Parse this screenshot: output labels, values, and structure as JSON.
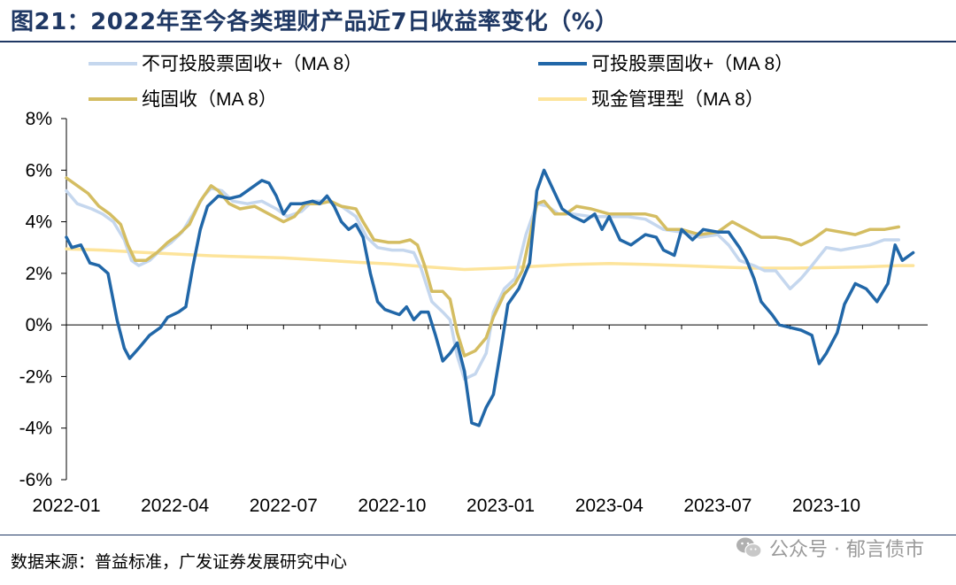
{
  "figure": {
    "title": "图21：2022年至今各类理财产品近7日收益率变化（%）",
    "source": "数据来源：普益标准，广发证券发展研究中心",
    "watermark": "公众号 · 郁言债市"
  },
  "chart_data": {
    "type": "line",
    "title": "",
    "xlabel": "",
    "ylabel": "",
    "ylim": [
      -6,
      8
    ],
    "yticks": [
      -6,
      -4,
      -2,
      0,
      2,
      4,
      6,
      8
    ],
    "ytick_labels": [
      "-6%",
      "-4%",
      "-2%",
      "0%",
      "2%",
      "4%",
      "6%",
      "8%"
    ],
    "xlim": [
      0,
      23.8
    ],
    "xticks": [
      0,
      3,
      6,
      9,
      12,
      15,
      18,
      21
    ],
    "xtick_labels": [
      "2022-01",
      "2022-04",
      "2022-07",
      "2022-10",
      "2023-01",
      "2023-04",
      "2023-07",
      "2023-10"
    ],
    "x_unit": "months since 2022-01",
    "grid": false,
    "legend_position": "top",
    "series": [
      {
        "name": "不可投股票固收+（MA 8）",
        "color": "#c5d7ee",
        "points": [
          [
            0,
            5.2
          ],
          [
            0.3,
            4.7
          ],
          [
            0.7,
            4.5
          ],
          [
            1.0,
            4.3
          ],
          [
            1.3,
            4.0
          ],
          [
            1.6,
            3.3
          ],
          [
            1.8,
            2.5
          ],
          [
            2.0,
            2.3
          ],
          [
            2.3,
            2.5
          ],
          [
            2.6,
            2.9
          ],
          [
            2.9,
            3.2
          ],
          [
            3.2,
            3.6
          ],
          [
            3.5,
            4.3
          ],
          [
            3.8,
            5.0
          ],
          [
            4.0,
            5.3
          ],
          [
            4.3,
            5.2
          ],
          [
            4.6,
            4.8
          ],
          [
            5.0,
            4.7
          ],
          [
            5.4,
            4.8
          ],
          [
            5.8,
            4.5
          ],
          [
            6.1,
            4.2
          ],
          [
            6.5,
            4.4
          ],
          [
            6.8,
            4.8
          ],
          [
            7.2,
            4.8
          ],
          [
            7.6,
            4.6
          ],
          [
            8.0,
            4.2
          ],
          [
            8.3,
            3.4
          ],
          [
            8.6,
            3.0
          ],
          [
            9.0,
            2.9
          ],
          [
            9.3,
            2.9
          ],
          [
            9.6,
            2.8
          ],
          [
            9.8,
            2.2
          ],
          [
            10.1,
            0.9
          ],
          [
            10.4,
            0.5
          ],
          [
            10.6,
            0.2
          ],
          [
            10.8,
            -1.2
          ],
          [
            11.0,
            -2.1
          ],
          [
            11.3,
            -1.9
          ],
          [
            11.6,
            -1.1
          ],
          [
            11.8,
            0.5
          ],
          [
            12.1,
            1.4
          ],
          [
            12.4,
            1.8
          ],
          [
            12.7,
            3.5
          ],
          [
            13.0,
            4.7
          ],
          [
            13.3,
            4.6
          ],
          [
            13.6,
            4.3
          ],
          [
            14.0,
            4.3
          ],
          [
            14.5,
            4.2
          ],
          [
            15.0,
            4.2
          ],
          [
            15.5,
            4.2
          ],
          [
            16.0,
            4.1
          ],
          [
            16.5,
            3.7
          ],
          [
            17.0,
            3.6
          ],
          [
            17.5,
            3.4
          ],
          [
            18.0,
            3.5
          ],
          [
            18.3,
            3.1
          ],
          [
            18.6,
            2.5
          ],
          [
            19.0,
            2.3
          ],
          [
            19.3,
            2.1
          ],
          [
            19.6,
            2.1
          ],
          [
            20.0,
            1.4
          ],
          [
            20.3,
            1.8
          ],
          [
            20.6,
            2.3
          ],
          [
            21.0,
            3.0
          ],
          [
            21.4,
            2.9
          ],
          [
            21.8,
            3.0
          ],
          [
            22.2,
            3.1
          ],
          [
            22.6,
            3.3
          ],
          [
            23.0,
            3.3
          ]
        ]
      },
      {
        "name": "可投股票固收+（MA 8）",
        "color": "#2167a8",
        "points": [
          [
            0,
            3.4
          ],
          [
            0.15,
            3.0
          ],
          [
            0.4,
            3.1
          ],
          [
            0.65,
            2.4
          ],
          [
            0.9,
            2.3
          ],
          [
            1.15,
            2.0
          ],
          [
            1.4,
            0.2
          ],
          [
            1.6,
            -0.9
          ],
          [
            1.75,
            -1.3
          ],
          [
            2.0,
            -0.9
          ],
          [
            2.3,
            -0.4
          ],
          [
            2.6,
            -0.1
          ],
          [
            2.8,
            0.3
          ],
          [
            3.1,
            0.5
          ],
          [
            3.3,
            0.7
          ],
          [
            3.5,
            2.3
          ],
          [
            3.7,
            3.7
          ],
          [
            3.9,
            4.6
          ],
          [
            4.2,
            5.0
          ],
          [
            4.5,
            4.9
          ],
          [
            4.8,
            5.0
          ],
          [
            5.1,
            5.3
          ],
          [
            5.4,
            5.6
          ],
          [
            5.6,
            5.5
          ],
          [
            5.8,
            5.0
          ],
          [
            6.0,
            4.3
          ],
          [
            6.2,
            4.7
          ],
          [
            6.5,
            4.7
          ],
          [
            6.8,
            4.8
          ],
          [
            7.0,
            4.7
          ],
          [
            7.2,
            5.0
          ],
          [
            7.4,
            4.6
          ],
          [
            7.6,
            4.0
          ],
          [
            7.8,
            3.7
          ],
          [
            8.0,
            3.9
          ],
          [
            8.2,
            3.4
          ],
          [
            8.4,
            2.0
          ],
          [
            8.6,
            0.9
          ],
          [
            8.8,
            0.6
          ],
          [
            9.0,
            0.5
          ],
          [
            9.2,
            0.4
          ],
          [
            9.4,
            0.7
          ],
          [
            9.6,
            0.2
          ],
          [
            9.8,
            0.5
          ],
          [
            10.0,
            0.5
          ],
          [
            10.2,
            -0.4
          ],
          [
            10.4,
            -1.4
          ],
          [
            10.6,
            -1.1
          ],
          [
            10.8,
            -0.7
          ],
          [
            11.0,
            -1.8
          ],
          [
            11.2,
            -3.8
          ],
          [
            11.4,
            -3.9
          ],
          [
            11.6,
            -3.2
          ],
          [
            11.8,
            -2.7
          ],
          [
            12.0,
            -1.0
          ],
          [
            12.2,
            0.8
          ],
          [
            12.5,
            1.4
          ],
          [
            12.8,
            2.4
          ],
          [
            13.0,
            5.2
          ],
          [
            13.2,
            6.0
          ],
          [
            13.5,
            5.1
          ],
          [
            13.7,
            4.5
          ],
          [
            14.0,
            4.2
          ],
          [
            14.3,
            4.0
          ],
          [
            14.6,
            4.3
          ],
          [
            14.8,
            3.7
          ],
          [
            15.0,
            4.2
          ],
          [
            15.3,
            3.3
          ],
          [
            15.6,
            3.1
          ],
          [
            15.8,
            3.3
          ],
          [
            16.0,
            3.5
          ],
          [
            16.3,
            3.4
          ],
          [
            16.5,
            2.9
          ],
          [
            16.8,
            2.7
          ],
          [
            17.0,
            3.7
          ],
          [
            17.3,
            3.3
          ],
          [
            17.6,
            3.7
          ],
          [
            18.0,
            3.6
          ],
          [
            18.3,
            3.6
          ],
          [
            18.6,
            3.0
          ],
          [
            18.8,
            2.5
          ],
          [
            19.0,
            1.8
          ],
          [
            19.2,
            0.9
          ],
          [
            19.5,
            0.4
          ],
          [
            19.7,
            0.0
          ],
          [
            20.0,
            -0.1
          ],
          [
            20.3,
            -0.2
          ],
          [
            20.6,
            -0.4
          ],
          [
            20.8,
            -1.5
          ],
          [
            21.0,
            -1.1
          ],
          [
            21.3,
            -0.3
          ],
          [
            21.5,
            0.8
          ],
          [
            21.8,
            1.6
          ],
          [
            22.1,
            1.4
          ],
          [
            22.4,
            0.9
          ],
          [
            22.7,
            1.6
          ],
          [
            22.9,
            3.1
          ],
          [
            23.1,
            2.5
          ],
          [
            23.4,
            2.8
          ]
        ]
      },
      {
        "name": "纯固收（MA 8）",
        "color": "#d4bd62",
        "points": [
          [
            0,
            5.7
          ],
          [
            0.3,
            5.4
          ],
          [
            0.6,
            5.1
          ],
          [
            0.9,
            4.6
          ],
          [
            1.2,
            4.3
          ],
          [
            1.5,
            3.9
          ],
          [
            1.7,
            3.1
          ],
          [
            1.9,
            2.5
          ],
          [
            2.2,
            2.5
          ],
          [
            2.5,
            2.8
          ],
          [
            2.8,
            3.2
          ],
          [
            3.1,
            3.5
          ],
          [
            3.4,
            3.9
          ],
          [
            3.7,
            4.8
          ],
          [
            4.0,
            5.4
          ],
          [
            4.2,
            5.2
          ],
          [
            4.5,
            4.7
          ],
          [
            4.8,
            4.5
          ],
          [
            5.2,
            4.6
          ],
          [
            5.6,
            4.3
          ],
          [
            6.0,
            4.0
          ],
          [
            6.3,
            4.2
          ],
          [
            6.6,
            4.7
          ],
          [
            7.0,
            4.7
          ],
          [
            7.3,
            4.8
          ],
          [
            7.6,
            4.6
          ],
          [
            8.0,
            4.5
          ],
          [
            8.2,
            4.0
          ],
          [
            8.5,
            3.3
          ],
          [
            8.9,
            3.2
          ],
          [
            9.2,
            3.2
          ],
          [
            9.5,
            3.3
          ],
          [
            9.7,
            3.1
          ],
          [
            9.9,
            2.3
          ],
          [
            10.1,
            1.3
          ],
          [
            10.4,
            1.3
          ],
          [
            10.6,
            1.0
          ],
          [
            10.8,
            -0.3
          ],
          [
            11.0,
            -1.2
          ],
          [
            11.3,
            -1.0
          ],
          [
            11.6,
            -0.5
          ],
          [
            11.8,
            0.3
          ],
          [
            12.1,
            1.2
          ],
          [
            12.4,
            1.6
          ],
          [
            12.6,
            2.1
          ],
          [
            12.8,
            3.4
          ],
          [
            13.0,
            4.7
          ],
          [
            13.2,
            4.8
          ],
          [
            13.5,
            4.3
          ],
          [
            13.8,
            4.3
          ],
          [
            14.1,
            4.6
          ],
          [
            14.5,
            4.5
          ],
          [
            15.0,
            4.3
          ],
          [
            15.5,
            4.3
          ],
          [
            16.0,
            4.3
          ],
          [
            16.3,
            4.2
          ],
          [
            16.6,
            3.7
          ],
          [
            17.0,
            3.7
          ],
          [
            17.5,
            3.5
          ],
          [
            18.0,
            3.6
          ],
          [
            18.4,
            4.0
          ],
          [
            18.8,
            3.7
          ],
          [
            19.2,
            3.4
          ],
          [
            19.6,
            3.4
          ],
          [
            20.0,
            3.3
          ],
          [
            20.3,
            3.1
          ],
          [
            20.6,
            3.3
          ],
          [
            21.0,
            3.7
          ],
          [
            21.4,
            3.6
          ],
          [
            21.8,
            3.5
          ],
          [
            22.2,
            3.7
          ],
          [
            22.6,
            3.7
          ],
          [
            23.0,
            3.8
          ]
        ]
      },
      {
        "name": "现金管理型（MA 8）",
        "color": "#fde49b",
        "points": [
          [
            0,
            2.95
          ],
          [
            1.0,
            2.9
          ],
          [
            2.0,
            2.82
          ],
          [
            3.0,
            2.75
          ],
          [
            4.0,
            2.68
          ],
          [
            5.0,
            2.64
          ],
          [
            6.0,
            2.6
          ],
          [
            7.0,
            2.52
          ],
          [
            8.0,
            2.43
          ],
          [
            9.0,
            2.36
          ],
          [
            10.0,
            2.25
          ],
          [
            11.0,
            2.15
          ],
          [
            12.0,
            2.2
          ],
          [
            13.0,
            2.28
          ],
          [
            14.0,
            2.35
          ],
          [
            15.0,
            2.38
          ],
          [
            16.0,
            2.35
          ],
          [
            17.0,
            2.3
          ],
          [
            18.0,
            2.25
          ],
          [
            19.0,
            2.2
          ],
          [
            20.0,
            2.2
          ],
          [
            21.0,
            2.22
          ],
          [
            22.0,
            2.25
          ],
          [
            23.0,
            2.3
          ],
          [
            23.4,
            2.3
          ]
        ]
      }
    ]
  }
}
